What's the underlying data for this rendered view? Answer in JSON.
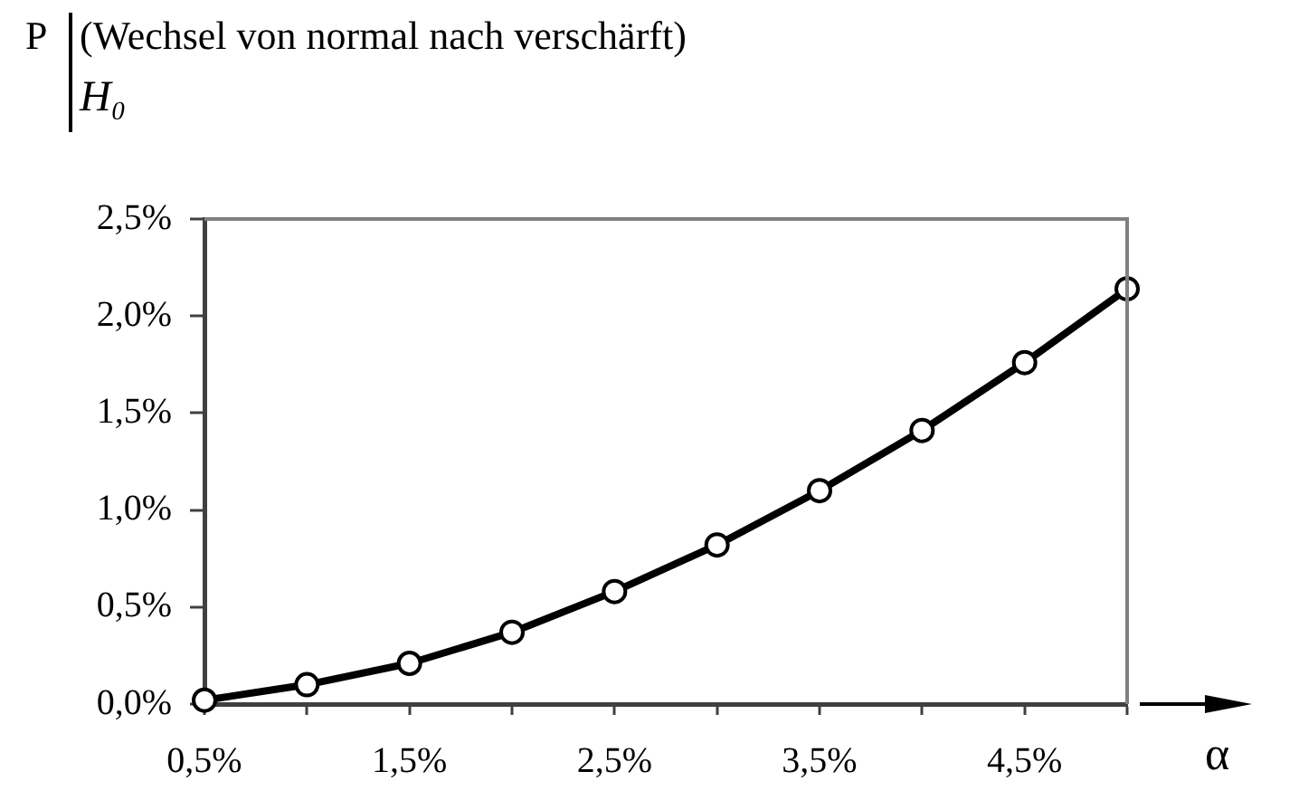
{
  "chart_data": {
    "type": "line",
    "title": "(Wechsel von normal nach verschärft)",
    "subtitle": "H₀",
    "ylabel": "P",
    "xlabel": "α",
    "x": [
      0.5,
      1.0,
      1.5,
      2.0,
      2.5,
      3.0,
      3.5,
      4.0,
      4.5,
      5.0
    ],
    "series": [
      {
        "color": "#000000",
        "values": [
          0.02,
          0.1,
          0.21,
          0.37,
          0.58,
          0.82,
          1.1,
          1.41,
          1.76,
          2.14
        ]
      }
    ],
    "xlim": [
      0.5,
      5.0
    ],
    "xticks": [
      {
        "value": 0.5,
        "label": "0,5%"
      },
      {
        "value": 1.0,
        "label": null
      },
      {
        "value": 1.5,
        "label": "1,5%"
      },
      {
        "value": 2.0,
        "label": null
      },
      {
        "value": 2.5,
        "label": "2,5%"
      },
      {
        "value": 3.0,
        "label": null
      },
      {
        "value": 3.5,
        "label": "3,5%"
      },
      {
        "value": 4.0,
        "label": null
      },
      {
        "value": 4.5,
        "label": "4,5%"
      },
      {
        "value": 5.0,
        "label": null
      }
    ],
    "ylim": [
      0,
      2.5
    ],
    "yticks": [
      {
        "value": 0,
        "label": "0,0%"
      },
      {
        "value": 0.5,
        "label": "0,5%"
      },
      {
        "value": 1.0,
        "label": "1,0%"
      },
      {
        "value": 1.5,
        "label": "1,5%"
      },
      {
        "value": 2.0,
        "label": "2,0%"
      },
      {
        "value": 2.5,
        "label": "2,5%"
      }
    ],
    "grid": false,
    "legend": false,
    "marker": "circle",
    "line_style": "solid"
  }
}
